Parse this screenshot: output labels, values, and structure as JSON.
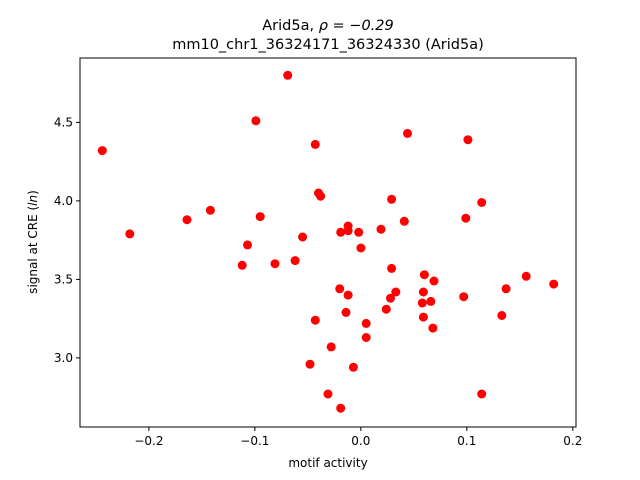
{
  "chart_data": {
    "type": "scatter",
    "title_line1_prefix": "Arid5a, ",
    "title_line1_rho": "ρ = −0.29",
    "title_line2": "mm10_chr1_36324171_36324330 (Arid5a)",
    "xlabel": "motif activity",
    "ylabel_prefix": "signal at CRE (",
    "ylabel_italic": "ln",
    "ylabel_suffix": ")",
    "xlim": [
      -0.265,
      0.203
    ],
    "ylim": [
      2.56,
      4.91
    ],
    "xticks": [
      {
        "value": -0.2,
        "label": "−0.2"
      },
      {
        "value": -0.1,
        "label": "−0.1"
      },
      {
        "value": 0.0,
        "label": "0.0"
      },
      {
        "value": 0.1,
        "label": "0.1"
      },
      {
        "value": 0.2,
        "label": "0.2"
      }
    ],
    "yticks": [
      {
        "value": 3.0,
        "label": "3.0"
      },
      {
        "value": 3.5,
        "label": "3.5"
      },
      {
        "value": 4.0,
        "label": "4.0"
      },
      {
        "value": 4.5,
        "label": "4.5"
      }
    ],
    "grid": false,
    "marker_color": "#ff0000",
    "points": [
      {
        "x": -0.069,
        "y": 4.8
      },
      {
        "x": -0.099,
        "y": 4.51
      },
      {
        "x": -0.244,
        "y": 4.32
      },
      {
        "x": -0.043,
        "y": 4.36
      },
      {
        "x": 0.044,
        "y": 4.43
      },
      {
        "x": 0.101,
        "y": 4.39
      },
      {
        "x": -0.04,
        "y": 4.05
      },
      {
        "x": -0.038,
        "y": 4.03
      },
      {
        "x": 0.029,
        "y": 4.01
      },
      {
        "x": 0.114,
        "y": 3.99
      },
      {
        "x": -0.142,
        "y": 3.94
      },
      {
        "x": -0.164,
        "y": 3.88
      },
      {
        "x": -0.095,
        "y": 3.9
      },
      {
        "x": 0.099,
        "y": 3.89
      },
      {
        "x": 0.041,
        "y": 3.87
      },
      {
        "x": -0.012,
        "y": 3.84
      },
      {
        "x": 0.019,
        "y": 3.82
      },
      {
        "x": -0.012,
        "y": 3.81
      },
      {
        "x": -0.019,
        "y": 3.8
      },
      {
        "x": -0.002,
        "y": 3.8
      },
      {
        "x": -0.218,
        "y": 3.79
      },
      {
        "x": -0.055,
        "y": 3.77
      },
      {
        "x": -0.107,
        "y": 3.72
      },
      {
        "x": 0.0,
        "y": 3.7
      },
      {
        "x": -0.062,
        "y": 3.62
      },
      {
        "x": -0.081,
        "y": 3.6
      },
      {
        "x": -0.112,
        "y": 3.59
      },
      {
        "x": 0.029,
        "y": 3.57
      },
      {
        "x": 0.06,
        "y": 3.53
      },
      {
        "x": 0.156,
        "y": 3.52
      },
      {
        "x": 0.069,
        "y": 3.49
      },
      {
        "x": 0.182,
        "y": 3.47
      },
      {
        "x": 0.137,
        "y": 3.44
      },
      {
        "x": -0.02,
        "y": 3.44
      },
      {
        "x": 0.033,
        "y": 3.42
      },
      {
        "x": 0.059,
        "y": 3.42
      },
      {
        "x": -0.012,
        "y": 3.4
      },
      {
        "x": 0.097,
        "y": 3.39
      },
      {
        "x": 0.028,
        "y": 3.38
      },
      {
        "x": 0.058,
        "y": 3.35
      },
      {
        "x": 0.066,
        "y": 3.36
      },
      {
        "x": 0.024,
        "y": 3.31
      },
      {
        "x": -0.014,
        "y": 3.29
      },
      {
        "x": 0.059,
        "y": 3.26
      },
      {
        "x": 0.133,
        "y": 3.27
      },
      {
        "x": -0.043,
        "y": 3.24
      },
      {
        "x": 0.005,
        "y": 3.22
      },
      {
        "x": 0.068,
        "y": 3.19
      },
      {
        "x": 0.005,
        "y": 3.13
      },
      {
        "x": -0.028,
        "y": 3.07
      },
      {
        "x": -0.048,
        "y": 2.96
      },
      {
        "x": -0.007,
        "y": 2.94
      },
      {
        "x": -0.031,
        "y": 2.77
      },
      {
        "x": 0.114,
        "y": 2.77
      },
      {
        "x": -0.019,
        "y": 2.68
      }
    ]
  }
}
